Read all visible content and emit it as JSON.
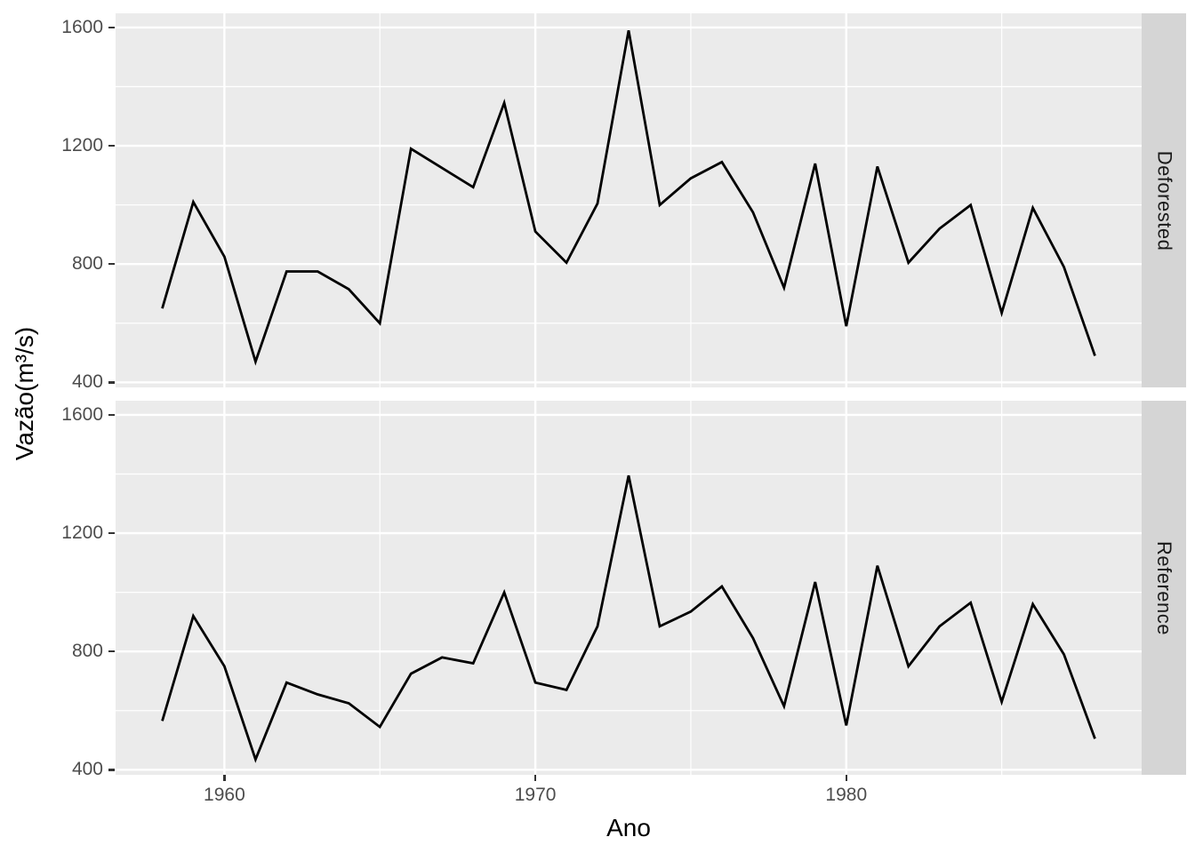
{
  "figure": {
    "x_axis_title": "Ano",
    "y_axis_title": "Vazão(m³/s)"
  },
  "chart_data": {
    "type": "line",
    "title": "",
    "xlabel": "Ano",
    "ylabel": "Vazão(m³/s)",
    "facet_layout": "rows-right-strips",
    "legend": "none",
    "grid": true,
    "x": [
      1958,
      1959,
      1960,
      1961,
      1962,
      1963,
      1964,
      1965,
      1966,
      1967,
      1968,
      1969,
      1970,
      1971,
      1972,
      1973,
      1974,
      1975,
      1976,
      1977,
      1978,
      1979,
      1980,
      1981,
      1982,
      1983,
      1984,
      1985,
      1986,
      1987,
      1988
    ],
    "series": [
      {
        "name": "Deforested",
        "values": [
          650,
          1010,
          825,
          470,
          775,
          775,
          715,
          600,
          1190,
          1125,
          1060,
          1345,
          910,
          805,
          1005,
          1590,
          1000,
          1090,
          1145,
          975,
          720,
          1140,
          590,
          1130,
          805,
          920,
          1000,
          635,
          990,
          790,
          490
        ]
      },
      {
        "name": "Reference",
        "values": [
          565,
          920,
          750,
          435,
          695,
          655,
          625,
          545,
          725,
          780,
          760,
          1000,
          695,
          670,
          885,
          1395,
          885,
          935,
          1020,
          845,
          615,
          1035,
          550,
          1090,
          750,
          885,
          965,
          630,
          960,
          790,
          505
        ]
      }
    ],
    "x_ticks": {
      "major": [
        1960,
        1970,
        1980
      ],
      "minor": [
        1965,
        1975,
        1985
      ]
    },
    "y_ticks": {
      "major": [
        400,
        800,
        1200,
        1600
      ],
      "minor": [
        600,
        1000,
        1400
      ]
    },
    "xlim": [
      1956.5,
      1989.5
    ],
    "ylim": [
      383,
      1648
    ],
    "colors": {
      "line": "#000000",
      "panel_bg": "#EBEBEB",
      "grid": "#FFFFFF",
      "strip_bg": "#D5D5D5",
      "strip_text": "#1A1A1A",
      "axis_text": "#4D4D4D",
      "tick_mark": "#333333",
      "background": "#FFFFFF"
    }
  }
}
